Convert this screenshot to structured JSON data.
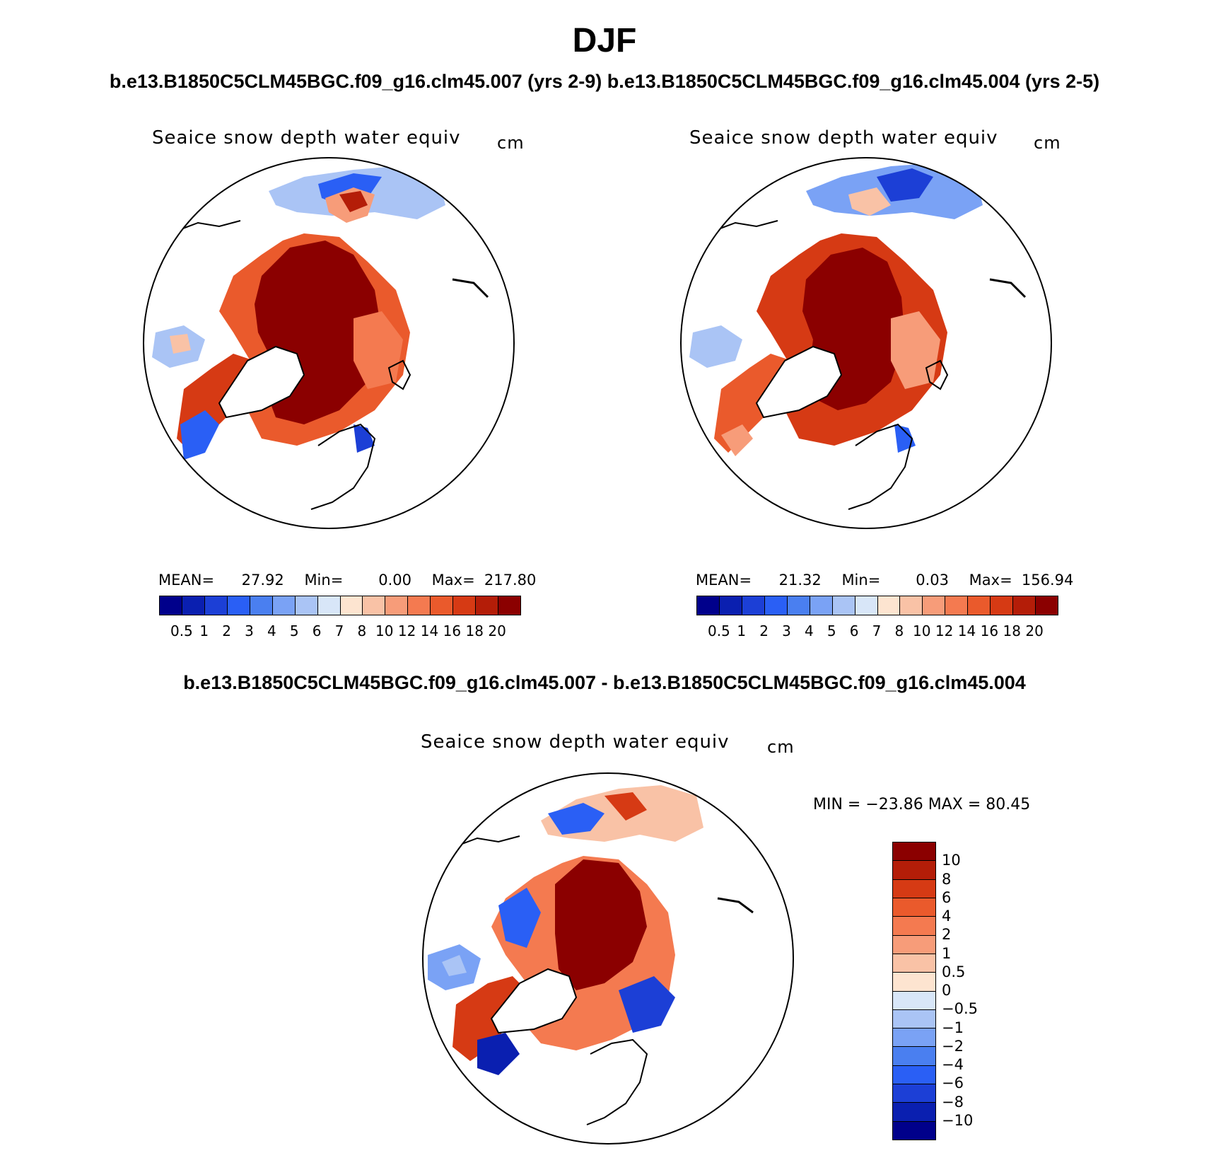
{
  "season": "DJF",
  "case_a_title": "b.e13.B1850C5CLM45BGC.f09_g16.clm45.007 (yrs 2-9)",
  "case_b_title": "b.e13.B1850C5CLM45BGC.f09_g16.clm45.004 (yrs 2-5)",
  "diff_title": "b.e13.B1850C5CLM45BGC.f09_g16.clm45.007 - b.e13.B1850C5CLM45BGC.f09_g16.clm45.004",
  "variable": "Seaice snow depth water equiv",
  "units": "cm",
  "panels": [
    {
      "mean_label": "MEAN=",
      "mean": "27.92",
      "min_label": "Min=",
      "min": "0.00",
      "max_label": "Max=",
      "max": "217.80"
    },
    {
      "mean_label": "MEAN=",
      "mean": "21.32",
      "min_label": "Min=",
      "min": "0.03",
      "max_label": "Max=",
      "max": "156.94"
    }
  ],
  "abs_colorbar": {
    "colors": [
      "#00008b",
      "#0a1fb0",
      "#1c3fd6",
      "#2a5ff5",
      "#4a7ff0",
      "#7aa2f5",
      "#aac4f5",
      "#d8e6f8",
      "#fde4d0",
      "#f9c2a6",
      "#f79c79",
      "#f47a50",
      "#ea5a2c",
      "#d63a14",
      "#b41d08",
      "#8b0000"
    ],
    "labels": [
      "0.5",
      "1",
      "2",
      "3",
      "4",
      "5",
      "6",
      "7",
      "8",
      "10",
      "12",
      "14",
      "16",
      "18",
      "20"
    ]
  },
  "diff_stats": {
    "text": "MIN = −23.86 MAX =   80.45"
  },
  "diff_colorbar": {
    "colors": [
      "#8b0000",
      "#b41d08",
      "#d63a14",
      "#ea5a2c",
      "#f47a50",
      "#f79c79",
      "#f9c2a6",
      "#fde4d0",
      "#d8e6f8",
      "#aac4f5",
      "#7aa2f5",
      "#4a7ff0",
      "#2a5ff5",
      "#1c3fd6",
      "#0a1fb0",
      "#00008b"
    ],
    "labels": [
      "10",
      "8",
      "6",
      "4",
      "2",
      "1",
      "0.5",
      "0",
      "−0.5",
      "−1",
      "−2",
      "−4",
      "−6",
      "−8",
      "−10"
    ]
  }
}
